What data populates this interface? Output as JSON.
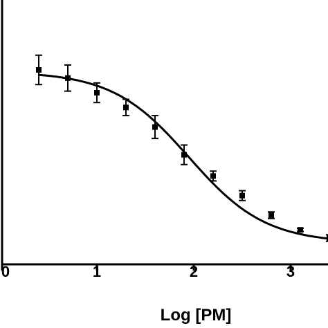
{
  "chart_data": {
    "type": "scatter",
    "title": "",
    "xlabel": "Log [PM]",
    "ylabel": "",
    "xlim": [
      0,
      3.5
    ],
    "x_ticks": [
      "0",
      "1",
      "2",
      "3"
    ],
    "grid": false,
    "legend": "none",
    "colors": {
      "marker": "#000000",
      "curve": "#000000",
      "axis": "#000000"
    },
    "series": [
      {
        "kind": "points",
        "x": [
          0.4,
          0.7,
          1.0,
          1.3,
          1.6,
          1.9,
          2.2,
          2.5,
          2.8,
          3.1,
          3.4
        ],
        "y": [
          1.2,
          1.15,
          1.06,
          0.97,
          0.85,
          0.68,
          0.55,
          0.43,
          0.31,
          0.22,
          0.17
        ],
        "err": [
          0.09,
          0.08,
          0.06,
          0.05,
          0.07,
          0.06,
          0.03,
          0.03,
          0.02,
          0.01,
          0.02
        ]
      },
      {
        "kind": "fit",
        "model": "sigmoid",
        "top": 1.19,
        "bottom": 0.14,
        "logEC50": 1.95,
        "hill_slope": -1.1
      }
    ]
  }
}
